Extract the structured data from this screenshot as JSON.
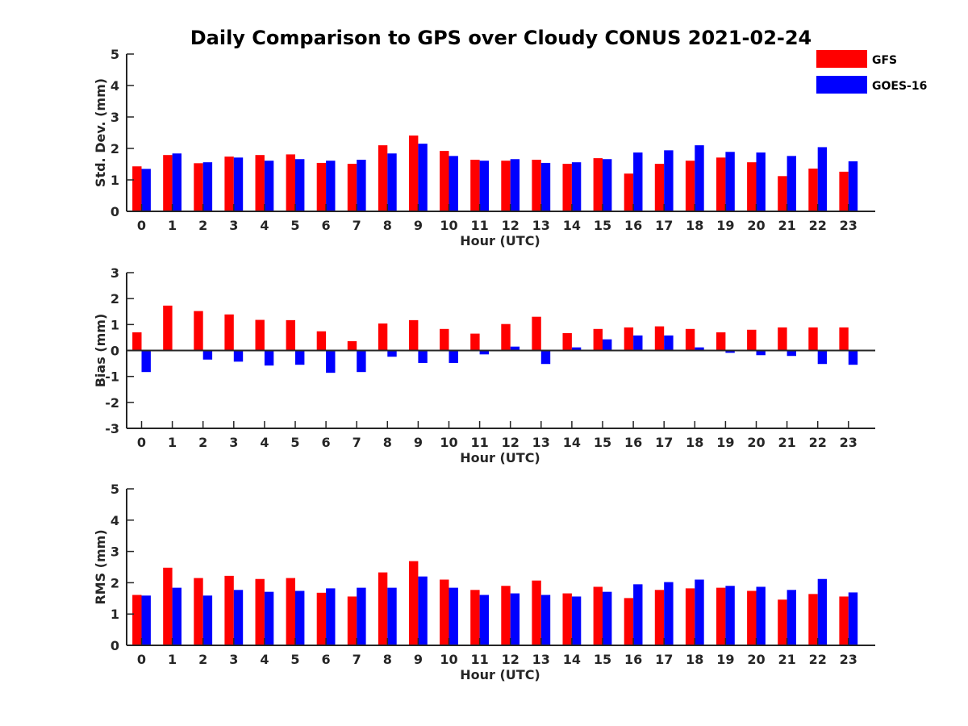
{
  "title": "Daily Comparison to GPS over Cloudy CONUS 2021-02-24",
  "legend": [
    {
      "name": "GFS",
      "color": "#ff0000"
    },
    {
      "name": "GOES-16",
      "color": "#0000ff"
    }
  ],
  "chart_data": [
    {
      "type": "bar",
      "ylabel": "Std. Dev. (mm)",
      "xlabel": "Hour (UTC)",
      "categories": [
        "0",
        "1",
        "2",
        "3",
        "4",
        "5",
        "6",
        "7",
        "8",
        "9",
        "10",
        "11",
        "12",
        "13",
        "14",
        "15",
        "16",
        "17",
        "18",
        "19",
        "20",
        "21",
        "22",
        "23"
      ],
      "ylim": [
        0,
        5
      ],
      "yticks": [
        0,
        1,
        2,
        3,
        4,
        5
      ],
      "series": [
        {
          "name": "GFS",
          "color": "#ff0000",
          "values": [
            1.43,
            1.79,
            1.53,
            1.74,
            1.79,
            1.81,
            1.54,
            1.51,
            2.1,
            2.41,
            1.92,
            1.64,
            1.61,
            1.64,
            1.51,
            1.69,
            1.2,
            1.51,
            1.61,
            1.71,
            1.56,
            1.12,
            1.36,
            1.26
          ]
        },
        {
          "name": "GOES-16",
          "color": "#0000ff",
          "values": [
            1.35,
            1.84,
            1.56,
            1.71,
            1.61,
            1.66,
            1.61,
            1.64,
            1.84,
            2.15,
            1.76,
            1.61,
            1.66,
            1.54,
            1.56,
            1.66,
            1.87,
            1.94,
            2.1,
            1.89,
            1.87,
            1.76,
            2.04,
            1.59
          ]
        }
      ]
    },
    {
      "type": "bar",
      "ylabel": "Bias (mm)",
      "xlabel": "Hour (UTC)",
      "categories": [
        "0",
        "1",
        "2",
        "3",
        "4",
        "5",
        "6",
        "7",
        "8",
        "9",
        "10",
        "11",
        "12",
        "13",
        "14",
        "15",
        "16",
        "17",
        "18",
        "19",
        "20",
        "21",
        "22",
        "23"
      ],
      "ylim": [
        -3,
        3
      ],
      "yticks": [
        -3,
        -2,
        -1,
        0,
        1,
        2,
        3
      ],
      "series": [
        {
          "name": "GFS",
          "color": "#ff0000",
          "values": [
            0.7,
            1.73,
            1.52,
            1.39,
            1.18,
            1.17,
            0.74,
            0.36,
            1.04,
            1.17,
            0.83,
            0.65,
            1.02,
            1.3,
            0.67,
            0.83,
            0.89,
            0.93,
            0.83,
            0.7,
            0.8,
            0.89,
            0.89,
            0.89
          ]
        },
        {
          "name": "GOES-16",
          "color": "#0000ff",
          "values": [
            -0.83,
            0.0,
            -0.35,
            -0.43,
            -0.58,
            -0.55,
            -0.86,
            -0.83,
            -0.24,
            -0.48,
            -0.48,
            -0.15,
            0.15,
            -0.52,
            0.12,
            0.43,
            0.58,
            0.58,
            0.12,
            -0.09,
            -0.18,
            -0.21,
            -0.52,
            -0.55
          ]
        }
      ]
    },
    {
      "type": "bar",
      "ylabel": "RMS (mm)",
      "xlabel": "Hour (UTC)",
      "categories": [
        "0",
        "1",
        "2",
        "3",
        "4",
        "5",
        "6",
        "7",
        "8",
        "9",
        "10",
        "11",
        "12",
        "13",
        "14",
        "15",
        "16",
        "17",
        "18",
        "19",
        "20",
        "21",
        "22",
        "23"
      ],
      "ylim": [
        0,
        5
      ],
      "yticks": [
        0,
        1,
        2,
        3,
        4,
        5
      ],
      "series": [
        {
          "name": "GFS",
          "color": "#ff0000",
          "values": [
            1.61,
            2.48,
            2.15,
            2.22,
            2.12,
            2.15,
            1.68,
            1.56,
            2.33,
            2.69,
            2.1,
            1.77,
            1.9,
            2.07,
            1.66,
            1.87,
            1.51,
            1.77,
            1.82,
            1.84,
            1.74,
            1.46,
            1.64,
            1.56
          ]
        },
        {
          "name": "GOES-16",
          "color": "#0000ff",
          "values": [
            1.59,
            1.84,
            1.59,
            1.77,
            1.71,
            1.74,
            1.82,
            1.84,
            1.84,
            2.2,
            1.84,
            1.61,
            1.66,
            1.61,
            1.56,
            1.71,
            1.95,
            2.02,
            2.1,
            1.9,
            1.87,
            1.77,
            2.12,
            1.69
          ]
        }
      ]
    }
  ]
}
